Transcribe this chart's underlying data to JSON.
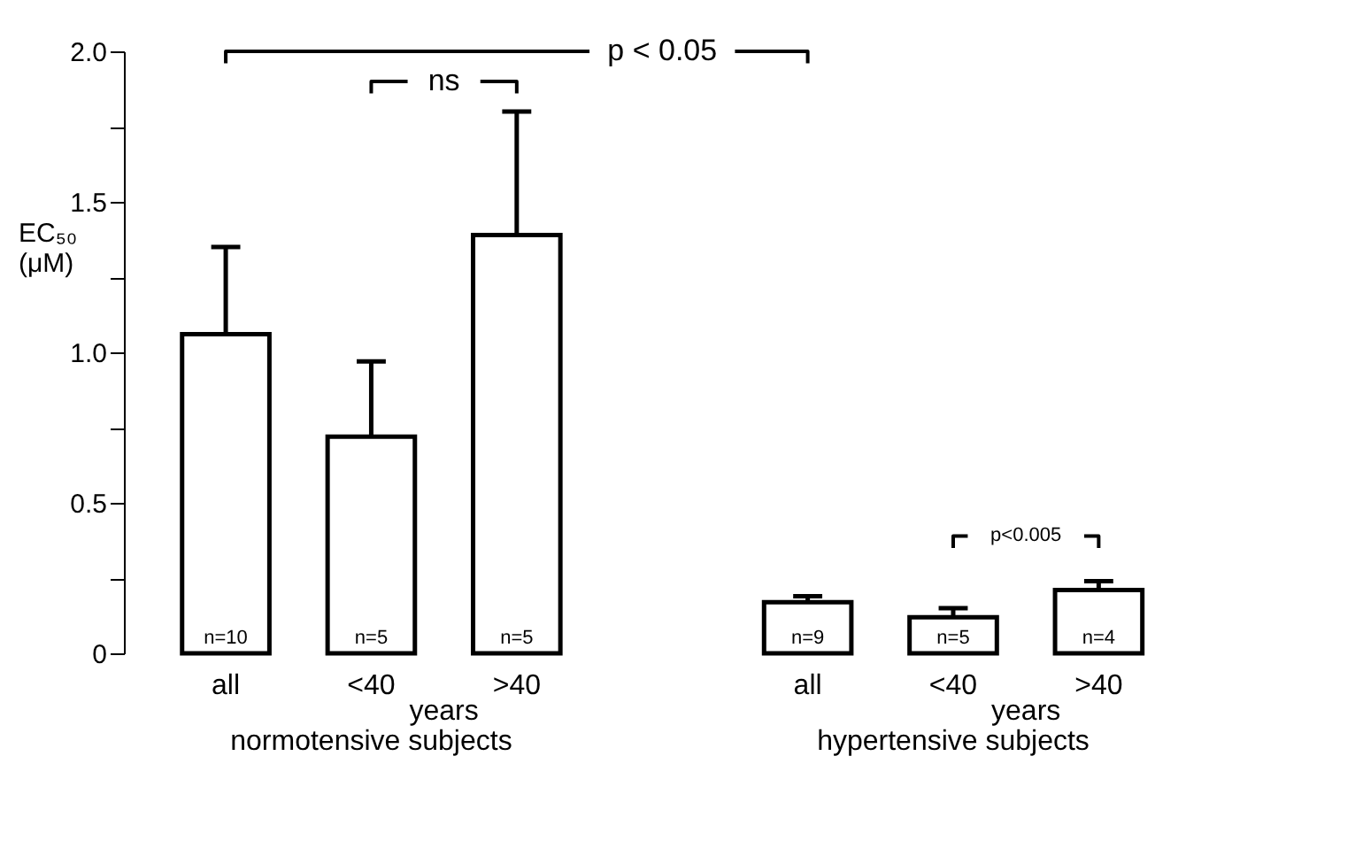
{
  "chart_data": {
    "type": "bar",
    "categories": [
      "all",
      "<40",
      ">40",
      "all",
      "<40",
      ">40"
    ],
    "values": [
      1.06,
      0.72,
      1.39,
      0.17,
      0.12,
      0.21
    ],
    "errors": [
      0.29,
      0.25,
      0.41,
      0.02,
      0.03,
      0.03
    ],
    "colors": [
      "#ffffff",
      "#ffffff",
      "#ffffff",
      "#ffffff",
      "#ffffff",
      "#ffffff"
    ],
    "ylabel": "EC₅₀ (μM)",
    "ylim": [
      0,
      2.0
    ],
    "yticks": [
      0,
      {
        "value": 0.25,
        "label": null
      },
      0.5,
      {
        "value": 0.75,
        "label": null
      },
      {
        "value": 1.0,
        "label": "1.0"
      },
      {
        "value": 1.25,
        "label": null
      },
      1.5,
      {
        "value": 1.75,
        "label": null
      },
      {
        "value": 2.0,
        "label": "2.0"
      }
    ],
    "grid": false,
    "annotations": [
      "n=10",
      "n=5",
      "n=5",
      "n=9",
      "n=5",
      "n=4",
      "years",
      "years",
      "normotensive subjects",
      "hypertensive subjects",
      "p < 0.05",
      "ns",
      "p<0.005"
    ]
  }
}
